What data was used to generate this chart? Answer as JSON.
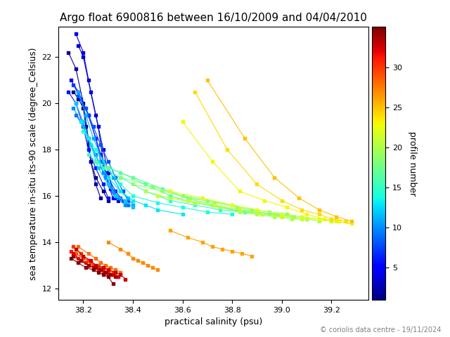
{
  "title": "Argo float 6900816 between 16/10/2009 and 04/04/2010",
  "xlabel": "practical salinity (psu)",
  "ylabel": "sea temperature in-situ its-90 scale (degree_Celsius)",
  "colorbar_label": "profile number",
  "copyright": "© coriolis data centre - 19/11/2024",
  "xlim": [
    38.1,
    39.35
  ],
  "ylim": [
    11.5,
    23.3
  ],
  "n_profiles": 35,
  "cmap": "jet",
  "colorbar_ticks": [
    5,
    10,
    15,
    20,
    25,
    30
  ],
  "title_fontsize": 11,
  "axis_fontsize": 9,
  "colorbar_fontsize": 9
}
